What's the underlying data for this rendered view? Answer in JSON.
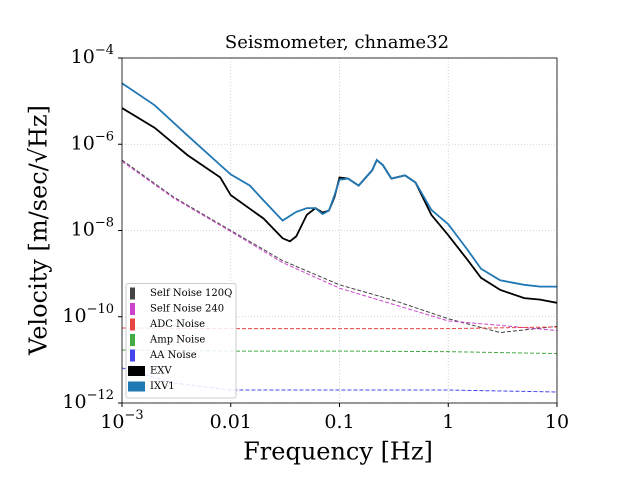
{
  "chart_data": {
    "type": "line",
    "title": "Seismometer, chname32",
    "x_label": "Frequency [Hz]",
    "y_label": "Velocity [m/sec/√Hz]",
    "xscale": "log",
    "yscale": "log",
    "grid": true,
    "legend_loc": "lower left",
    "xlim": [
      0.001,
      10
    ],
    "ylim": [
      1e-12,
      0.0001
    ],
    "xticks": [
      {
        "value": 0.001,
        "label": "10−3"
      },
      0.01,
      0.1,
      1,
      10
    ],
    "yticks": [
      {
        "value": 1e-12,
        "label": "10−12"
      },
      {
        "value": 1e-10,
        "label": "10−10"
      },
      {
        "value": 1e-08,
        "label": "10−8"
      },
      {
        "value": 1e-06,
        "label": "10−6"
      },
      {
        "value": 0.0001,
        "label": "10−4"
      }
    ],
    "series": [
      {
        "name": "Self Noise 120Q",
        "color": "#444444",
        "style": "dashed",
        "x": [
          0.001,
          0.003,
          0.01,
          0.03,
          0.1,
          0.3,
          1,
          3,
          10
        ],
        "values": [
          4.3e-07,
          5.9e-08,
          1e-08,
          2e-09,
          5.5e-10,
          2.5e-10,
          9e-11,
          4.3e-11,
          6e-11
        ]
      },
      {
        "name": "Self Noise 240",
        "color": "#cc44cc",
        "style": "dashed",
        "x": [
          0.001,
          0.003,
          0.01,
          0.03,
          0.1,
          0.3,
          1,
          3,
          10
        ],
        "values": [
          4e-07,
          5.6e-08,
          9.5e-09,
          1.8e-09,
          4.6e-10,
          2e-10,
          8e-11,
          6.3e-11,
          4.8e-11
        ]
      },
      {
        "name": "ADC Noise",
        "color": "#e84444",
        "style": "dashed",
        "x": [
          0.001,
          0.01,
          0.1,
          1,
          10
        ],
        "values": [
          5.5e-11,
          5.3e-11,
          5.3e-11,
          5.3e-11,
          5.8e-11
        ]
      },
      {
        "name": "Amp Noise",
        "color": "#44aa44",
        "style": "dashed",
        "x": [
          0.001,
          0.01,
          0.1,
          1,
          10
        ],
        "values": [
          1.7e-11,
          1.6e-11,
          1.6e-11,
          1.55e-11,
          1.4e-11
        ]
      },
      {
        "name": "AA Noise",
        "color": "#4444ee",
        "style": "dashed",
        "x": [
          0.001,
          0.003,
          0.01,
          0.1,
          1,
          10
        ],
        "values": [
          6.5e-12,
          2.9e-12,
          2e-12,
          2e-12,
          2e-12,
          1.8e-12
        ]
      },
      {
        "name": "EXV",
        "color": "#000000",
        "style": "solid",
        "x": [
          0.001,
          0.002,
          0.004,
          0.008,
          0.01,
          0.02,
          0.03,
          0.035,
          0.04,
          0.05,
          0.06,
          0.07,
          0.08,
          0.09,
          0.1,
          0.12,
          0.15,
          0.2,
          0.22,
          0.25,
          0.3,
          0.4,
          0.5,
          0.7,
          1,
          1.5,
          2,
          3,
          5,
          7,
          10
        ],
        "values": [
          6.9e-06,
          2.4e-06,
          5.6e-07,
          1.7e-07,
          6.6e-08,
          1.9e-08,
          6.6e-09,
          5.6e-09,
          7.3e-09,
          2.3e-08,
          3.3e-08,
          2.6e-08,
          2.9e-08,
          6e-08,
          1.7e-07,
          1.6e-07,
          1.1e-07,
          2.5e-07,
          4.3e-07,
          3.3e-07,
          1.6e-07,
          1.9e-07,
          1.3e-07,
          2.3e-08,
          7.8e-09,
          2.1e-09,
          8e-10,
          4.2e-10,
          2.7e-10,
          2.5e-10,
          2.1e-10
        ]
      },
      {
        "name": "IXV1",
        "color": "#1f77b4",
        "style": "solid",
        "x": [
          0.001,
          0.002,
          0.004,
          0.008,
          0.01,
          0.015,
          0.02,
          0.03,
          0.04,
          0.05,
          0.06,
          0.07,
          0.08,
          0.09,
          0.1,
          0.12,
          0.15,
          0.2,
          0.22,
          0.25,
          0.3,
          0.4,
          0.5,
          0.7,
          1,
          1.5,
          2,
          3,
          5,
          7,
          10
        ],
        "values": [
          2.6e-05,
          8e-06,
          1.6e-06,
          3.3e-07,
          2e-07,
          1.1e-07,
          5e-08,
          1.7e-08,
          2.7e-08,
          3.3e-08,
          3.3e-08,
          2.4e-08,
          2.9e-08,
          6.6e-08,
          1.5e-07,
          1.6e-07,
          1.1e-07,
          2.5e-07,
          4.3e-07,
          3.3e-07,
          1.6e-07,
          1.9e-07,
          1.3e-07,
          3e-08,
          1.4e-08,
          3.6e-09,
          1.3e-09,
          7e-10,
          5.5e-10,
          5e-10,
          5e-10
        ]
      }
    ]
  }
}
